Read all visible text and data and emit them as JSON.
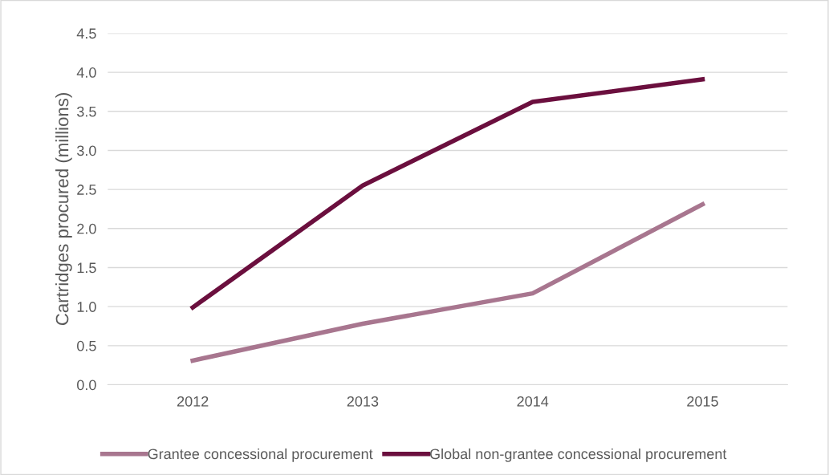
{
  "chart_data": {
    "type": "line",
    "ylabel": "Cartridges procured (millions)",
    "categories": [
      "2012",
      "2013",
      "2014",
      "2015"
    ],
    "series": [
      {
        "name": "Grantee concessional procurement",
        "color": "#a8768f",
        "values": [
          0.31,
          0.78,
          1.17,
          2.31
        ]
      },
      {
        "name": "Global non-grantee concessional procurement",
        "color": "#6b0f3e",
        "values": [
          0.99,
          2.55,
          3.62,
          3.91
        ]
      }
    ],
    "ylim": [
      0,
      4.5
    ],
    "yticks": [
      {
        "value": 0,
        "label": "0.0"
      },
      {
        "value": 0.5,
        "label": "0.5"
      },
      {
        "value": 1,
        "label": "1.0"
      },
      {
        "value": 1.5,
        "label": "1.5"
      },
      {
        "value": 2,
        "label": "2.0"
      },
      {
        "value": 2.5,
        "label": "2.5"
      },
      {
        "value": 3,
        "label": "3.0"
      },
      {
        "value": 3.5,
        "label": "3.5"
      },
      {
        "value": 4,
        "label": "4.0"
      },
      {
        "value": 4.5,
        "label": "4.5"
      }
    ],
    "grid": "y",
    "legend": "bottom",
    "marker": "none",
    "line_style": "solid"
  }
}
